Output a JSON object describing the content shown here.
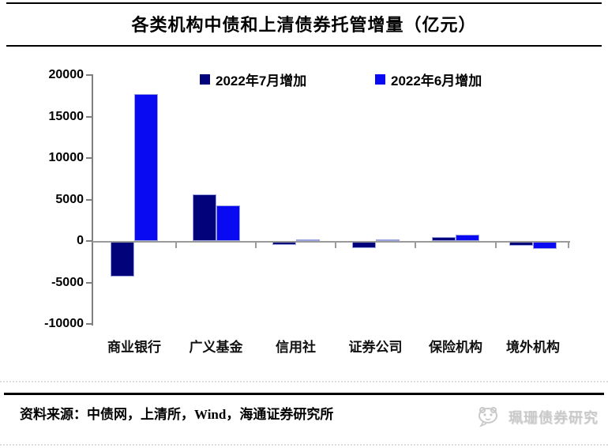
{
  "title": "各类机构中债和上清债券托管增量（亿元）",
  "chart_data": {
    "type": "bar",
    "title": "各类机构中债和上清债券托管增量（亿元）",
    "unit": "亿元",
    "categories": [
      "商业银行",
      "广义基金",
      "信用社",
      "证券公司",
      "保险机构",
      "境外机构"
    ],
    "series": [
      {
        "name": "2022年7月增加",
        "color": "#02027a",
        "values": [
          -4200,
          5600,
          -400,
          -800,
          500,
          -500
        ]
      },
      {
        "name": "2022年6月增加",
        "color": "#0a0af2",
        "values": [
          17700,
          4300,
          200,
          200,
          800,
          -900
        ]
      }
    ],
    "ylim": [
      -10000,
      20000
    ],
    "yticks": [
      20000,
      15000,
      10000,
      5000,
      0,
      -5000,
      -10000
    ],
    "legend_position": "top",
    "grid": false,
    "axis_color": "#9a9a9a"
  },
  "footer": {
    "source": "资料来源：中债网，上清所，Wind，海通证券研究所",
    "watermark": "珮珊债券研究"
  }
}
